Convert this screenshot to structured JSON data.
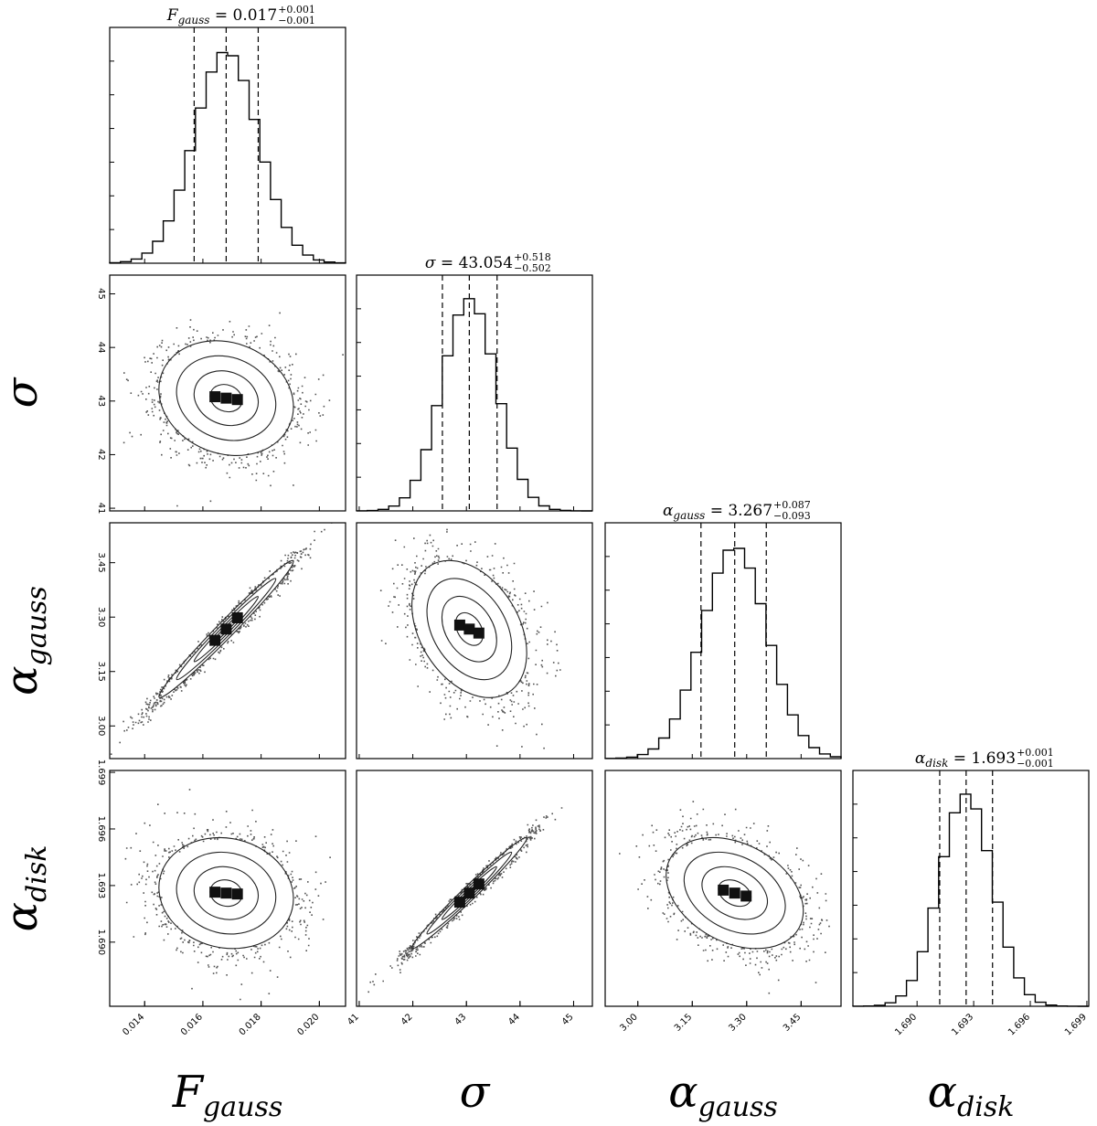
{
  "chart_data": {
    "type": "corner",
    "parameters": [
      {
        "id": "F_gauss",
        "label": "F",
        "label_sub": "gauss",
        "title_symbol": "F",
        "title_sub": "gauss",
        "title_value": "0.017",
        "title_plus": "+0.001",
        "title_minus": "−0.001",
        "median": 0.0168,
        "q16": 0.0157,
        "q84": 0.0179,
        "sigma": 0.0011,
        "range": [
          0.0128,
          0.0209
        ],
        "ticks": [
          0.014,
          0.016,
          0.018,
          0.02
        ],
        "tick_labels": [
          "0.014",
          "0.016",
          "0.018",
          "0.020"
        ],
        "show_left_ticks": false
      },
      {
        "id": "sigma",
        "label": "σ",
        "label_sub": "",
        "title_symbol": "σ",
        "title_sub": "",
        "title_value": "43.054",
        "title_plus": "+0.518",
        "title_minus": "−0.502",
        "median": 43.054,
        "q16": 42.552,
        "q84": 43.572,
        "sigma": 0.51,
        "range": [
          40.95,
          45.35
        ],
        "ticks": [
          41,
          42,
          43,
          44,
          45
        ],
        "tick_labels": [
          "41",
          "42",
          "43",
          "44",
          "45"
        ],
        "show_left_ticks": true
      },
      {
        "id": "alpha_gauss",
        "label": "α",
        "label_sub": "gauss",
        "title_symbol": "α",
        "title_sub": "gauss",
        "title_value": "3.267",
        "title_plus": "+0.087",
        "title_minus": "−0.093",
        "median": 3.267,
        "q16": 3.174,
        "q84": 3.354,
        "sigma": 0.09,
        "range": [
          2.91,
          3.56
        ],
        "ticks": [
          3.0,
          3.15,
          3.3,
          3.45
        ],
        "tick_labels": [
          "3.00",
          "3.15",
          "3.30",
          "3.45"
        ],
        "show_left_ticks": true
      },
      {
        "id": "alpha_disk",
        "label": "α",
        "label_sub": "disk",
        "title_symbol": "α",
        "title_sub": "disk",
        "title_value": "1.693",
        "title_plus": "+0.001",
        "title_minus": "−0.001",
        "median": 1.6926,
        "q16": 1.6912,
        "q84": 1.694,
        "sigma": 0.0014,
        "range": [
          1.6866,
          1.6991
        ],
        "ticks": [
          1.69,
          1.693,
          1.696,
          1.699
        ],
        "tick_labels": [
          "1.690",
          "1.693",
          "1.696",
          "1.699"
        ],
        "show_left_ticks": true
      }
    ],
    "correlations": [
      {
        "x": "F_gauss",
        "y": "sigma",
        "rho": -0.15
      },
      {
        "x": "F_gauss",
        "y": "alpha_gauss",
        "rho": 0.985
      },
      {
        "x": "sigma",
        "y": "alpha_gauss",
        "rho": -0.35
      },
      {
        "x": "F_gauss",
        "y": "alpha_disk",
        "rho": -0.1
      },
      {
        "x": "sigma",
        "y": "alpha_disk",
        "rho": 0.985
      },
      {
        "x": "alpha_gauss",
        "y": "alpha_disk",
        "rho": -0.32
      }
    ]
  }
}
